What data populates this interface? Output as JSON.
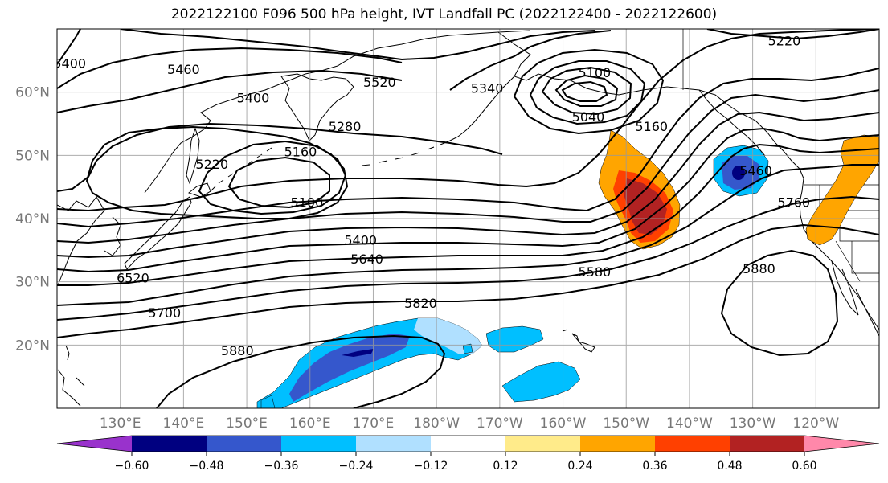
{
  "title": "2022122100 F096 500 hPa height, IVT Landfall PC (2022122400 - 2022122600)",
  "map": {
    "lon_range": [
      120,
      250
    ],
    "lat_range": [
      10,
      70
    ],
    "lat_ticks": [
      {
        "value": 20,
        "label": "20°N"
      },
      {
        "value": 30,
        "label": "30°N"
      },
      {
        "value": 40,
        "label": "40°N"
      },
      {
        "value": 50,
        "label": "50°N"
      },
      {
        "value": 60,
        "label": "60°N"
      }
    ],
    "lon_ticks": [
      {
        "value": 130,
        "label": "130°E"
      },
      {
        "value": 140,
        "label": "140°E"
      },
      {
        "value": 150,
        "label": "150°E"
      },
      {
        "value": 160,
        "label": "160°E"
      },
      {
        "value": 170,
        "label": "170°E"
      },
      {
        "value": 180,
        "label": "180°W"
      },
      {
        "value": 190,
        "label": "170°W"
      },
      {
        "value": 200,
        "label": "160°W"
      },
      {
        "value": 210,
        "label": "150°W"
      },
      {
        "value": 220,
        "label": "140°W"
      },
      {
        "value": 230,
        "label": "130°W"
      },
      {
        "value": 240,
        "label": "120°W"
      }
    ],
    "contour_labels": [
      {
        "text": "5400",
        "lon": 122,
        "lat": 64.5
      },
      {
        "text": "5460",
        "lon": 140,
        "lat": 63.5
      },
      {
        "text": "5520",
        "lon": 171,
        "lat": 61.5
      },
      {
        "text": "5340",
        "lon": 188,
        "lat": 60.5
      },
      {
        "text": "5100",
        "lon": 205,
        "lat": 63
      },
      {
        "text": "5220",
        "lon": 235,
        "lat": 68
      },
      {
        "text": "5400",
        "lon": 151,
        "lat": 59
      },
      {
        "text": "5040",
        "lon": 204,
        "lat": 56
      },
      {
        "text": "5160",
        "lon": 214,
        "lat": 54.5
      },
      {
        "text": "5280",
        "lon": 165.5,
        "lat": 54.5
      },
      {
        "text": "5160",
        "lon": 158.5,
        "lat": 50.5
      },
      {
        "text": "5220",
        "lon": 144.5,
        "lat": 48.5
      },
      {
        "text": "5100",
        "lon": 159.5,
        "lat": 42.5
      },
      {
        "text": "5460",
        "lon": 230.5,
        "lat": 47.5
      },
      {
        "text": "5760",
        "lon": 236.5,
        "lat": 42.5
      },
      {
        "text": "5400",
        "lon": 168,
        "lat": 36.5
      },
      {
        "text": "5640",
        "lon": 169,
        "lat": 33.5
      },
      {
        "text": "5580",
        "lon": 205,
        "lat": 31.5
      },
      {
        "text": "5880",
        "lon": 231,
        "lat": 32
      },
      {
        "text": "5820",
        "lon": 177.5,
        "lat": 26.5
      },
      {
        "text": "5700",
        "lon": 137,
        "lat": 25
      },
      {
        "text": "5880",
        "lon": 148.5,
        "lat": 19
      },
      {
        "text": "6520",
        "lon": 132,
        "lat": 30.5
      }
    ]
  },
  "colorbar": {
    "colors": [
      "#9932CC",
      "#000080",
      "#3557CC",
      "#00BFFF",
      "#B0E0FF",
      "#FFFFFF",
      "#FFEB8A",
      "#FFA500",
      "#FF4000",
      "#B22222",
      "#FF88AA"
    ],
    "ticks": [
      "−0.60",
      "−0.48",
      "−0.36",
      "−0.24",
      "−0.12",
      "0.12",
      "0.24",
      "0.36",
      "0.48",
      "0.60"
    ]
  }
}
